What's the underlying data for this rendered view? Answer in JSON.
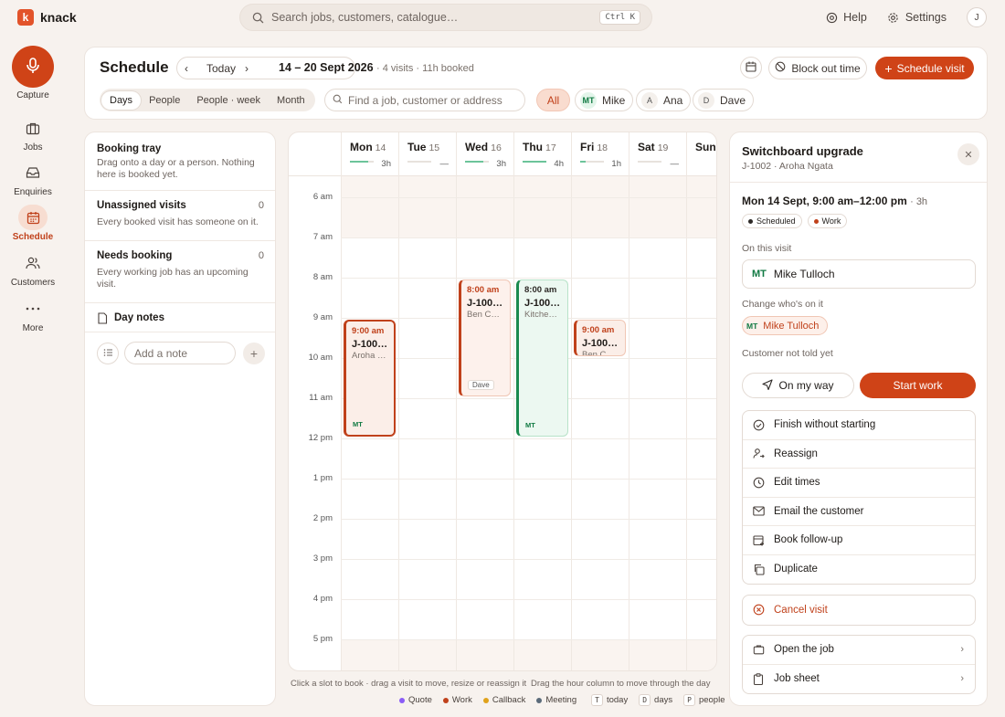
{
  "app": {
    "name": "knack",
    "logo_letter": "k",
    "accent": "#cf4317"
  },
  "search": {
    "placeholder": "Search jobs, customers, catalogue…",
    "shortcut": "Ctrl K"
  },
  "topnav": {
    "help": "Help",
    "settings": "Settings",
    "avatar": "J"
  },
  "sidebar": {
    "capture": "Capture",
    "items": [
      {
        "label": "Jobs",
        "icon": "briefcase-icon"
      },
      {
        "label": "Enquiries",
        "icon": "inbox-icon"
      },
      {
        "label": "Schedule",
        "icon": "calendar-icon",
        "active": true
      },
      {
        "label": "Customers",
        "icon": "users-icon"
      },
      {
        "label": "More",
        "icon": "more-icon"
      }
    ]
  },
  "header": {
    "title": "Schedule",
    "today": "Today",
    "range": "14 – 20 Sept 2026",
    "range_sub": "· 4 visits · 11h booked",
    "block_out": "Block out time",
    "schedule_visit": "Schedule visit",
    "views": [
      "Days",
      "People",
      "People · week",
      "Month"
    ],
    "active_view": "Days",
    "find_placeholder": "Find a job, customer or address",
    "filters": [
      {
        "label": "All",
        "init": ""
      },
      {
        "label": "Mike",
        "init": "MT"
      },
      {
        "label": "Ana",
        "init": "A"
      },
      {
        "label": "Dave",
        "init": "D"
      }
    ]
  },
  "tray": {
    "title": "Booking tray",
    "desc": "Drag onto a day or a person. Nothing here is booked yet.",
    "unassigned_title": "Unassigned visits",
    "unassigned_count": "0",
    "unassigned_desc": "Every booked visit has someone on it.",
    "needs_title": "Needs booking",
    "needs_count": "0",
    "needs_desc": "Every working job has an upcoming visit.",
    "notes_title": "Day notes",
    "note_placeholder": "Add a note"
  },
  "calendar": {
    "days": [
      {
        "name": "Mon",
        "num": "14",
        "hours": "3h",
        "load": 0.43
      },
      {
        "name": "Tue",
        "num": "15",
        "hours": "—",
        "load": 0
      },
      {
        "name": "Wed",
        "num": "16",
        "hours": "3h",
        "load": 0.43
      },
      {
        "name": "Thu",
        "num": "17",
        "hours": "4h",
        "load": 0.57
      },
      {
        "name": "Fri",
        "num": "18",
        "hours": "1h",
        "load": 0.14
      },
      {
        "name": "Sat",
        "num": "19",
        "hours": "—",
        "load": 0
      },
      {
        "name": "Sun",
        "num": "",
        "hours": "",
        "load": 0
      }
    ],
    "hours": [
      "6 am",
      "7 am",
      "8 am",
      "9 am",
      "10 am",
      "11 am",
      "12 pm",
      "1 pm",
      "2 pm",
      "3 pm",
      "4 pm",
      "5 pm"
    ],
    "visits": [
      {
        "day": 0,
        "start": 9,
        "end": 12,
        "time": "9:00 am",
        "job": "J-100…",
        "customer": "Aroha N…",
        "badge": "MT",
        "kind": "work",
        "selected": true
      },
      {
        "day": 2,
        "start": 8,
        "end": 11,
        "time": "8:00 am",
        "job": "J-100…",
        "customer": "Ben Car…",
        "tag": "Dave",
        "kind": "work"
      },
      {
        "day": 3,
        "start": 8,
        "end": 12,
        "time": "8:00 am",
        "job": "J-1001…",
        "customer": "Kitchen …",
        "badge": "MT",
        "kind": "green"
      },
      {
        "day": 4,
        "start": 9,
        "end": 10,
        "time": "9:00 am",
        "job": "J-100…",
        "customer": "Ben Car…",
        "kind": "work"
      }
    ],
    "hint1": "Click a slot to book · drag a visit to move, resize or reassign it",
    "hint2": "Drag the hour column to move through the day",
    "legend": [
      {
        "label": "Quote",
        "color": "#8b5cf6"
      },
      {
        "label": "Work",
        "color": "#c0411b"
      },
      {
        "label": "Callback",
        "color": "#e0a21b"
      },
      {
        "label": "Meeting",
        "color": "#5b6b7a"
      }
    ],
    "keys": [
      {
        "key": "T",
        "label": "today"
      },
      {
        "key": "D",
        "label": "days"
      },
      {
        "key": "P",
        "label": "people"
      }
    ]
  },
  "detail": {
    "title": "Switchboard upgrade",
    "sub": "J-1002 · Aroha Ngata",
    "when": "Mon 14 Sept, 9:00 am–12:00 pm",
    "duration": "· 3h",
    "status_scheduled": "Scheduled",
    "status_work": "Work",
    "on_visit_label": "On this visit",
    "person_init": "MT",
    "person_name": "Mike Tulloch",
    "change_label": "Change who's on it",
    "chip_name": "Mike Tulloch",
    "not_told": "Customer not told yet",
    "on_my_way": "On my way",
    "start_work": "Start work",
    "actions": [
      "Finish without starting",
      "Reassign",
      "Edit times",
      "Email the customer",
      "Book follow-up",
      "Duplicate"
    ],
    "cancel": "Cancel visit",
    "open_job": "Open the job",
    "job_sheet": "Job sheet"
  }
}
